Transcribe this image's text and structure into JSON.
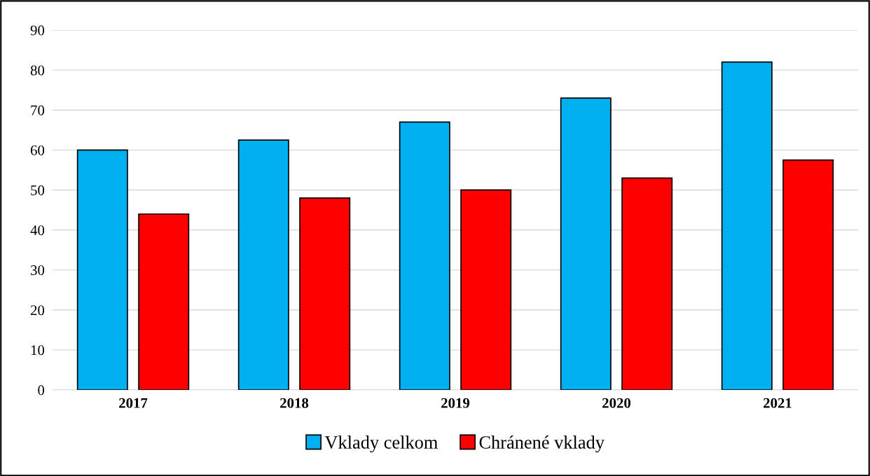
{
  "chart_data": {
    "type": "bar",
    "categories": [
      "2017",
      "2018",
      "2019",
      "2020",
      "2021"
    ],
    "series": [
      {
        "name": "Vklady celkom",
        "color": "#00b0f0",
        "values": [
          60,
          62.5,
          67,
          73,
          82
        ]
      },
      {
        "name": "Chránené vklady",
        "color": "#ff0000",
        "values": [
          44,
          48,
          50,
          53,
          57.5
        ]
      }
    ],
    "ylim": [
      0,
      90
    ],
    "yticks": [
      0,
      10,
      20,
      30,
      40,
      50,
      60,
      70,
      80,
      90
    ],
    "grid": "y",
    "legend": "bottom"
  }
}
